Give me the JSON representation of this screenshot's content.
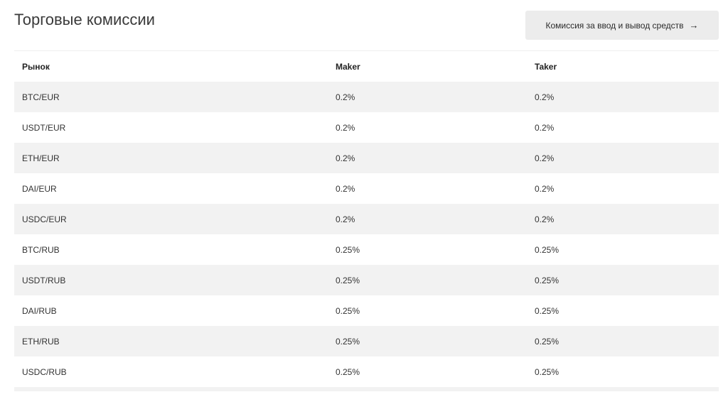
{
  "page": {
    "title": "Торговые комиссии",
    "fee_button": {
      "label": "Комиссия за ввод и вывод средств",
      "icon": "arrow-right-icon"
    }
  },
  "table": {
    "columns": [
      "Рынок",
      "Maker",
      "Taker"
    ],
    "rows": [
      {
        "market": "BTC/EUR",
        "maker": "0.2%",
        "taker": "0.2%"
      },
      {
        "market": "USDT/EUR",
        "maker": "0.2%",
        "taker": "0.2%"
      },
      {
        "market": "ETH/EUR",
        "maker": "0.2%",
        "taker": "0.2%"
      },
      {
        "market": "DAI/EUR",
        "maker": "0.2%",
        "taker": "0.2%"
      },
      {
        "market": "USDC/EUR",
        "maker": "0.2%",
        "taker": "0.2%"
      },
      {
        "market": "BTC/RUB",
        "maker": "0.25%",
        "taker": "0.25%"
      },
      {
        "market": "USDT/RUB",
        "maker": "0.25%",
        "taker": "0.25%"
      },
      {
        "market": "DAI/RUB",
        "maker": "0.25%",
        "taker": "0.25%"
      },
      {
        "market": "ETH/RUB",
        "maker": "0.25%",
        "taker": "0.25%"
      },
      {
        "market": "USDC/RUB",
        "maker": "0.25%",
        "taker": "0.25%"
      }
    ]
  },
  "colors": {
    "row_shade": "#f2f2f2",
    "button_bg": "#ececec"
  }
}
